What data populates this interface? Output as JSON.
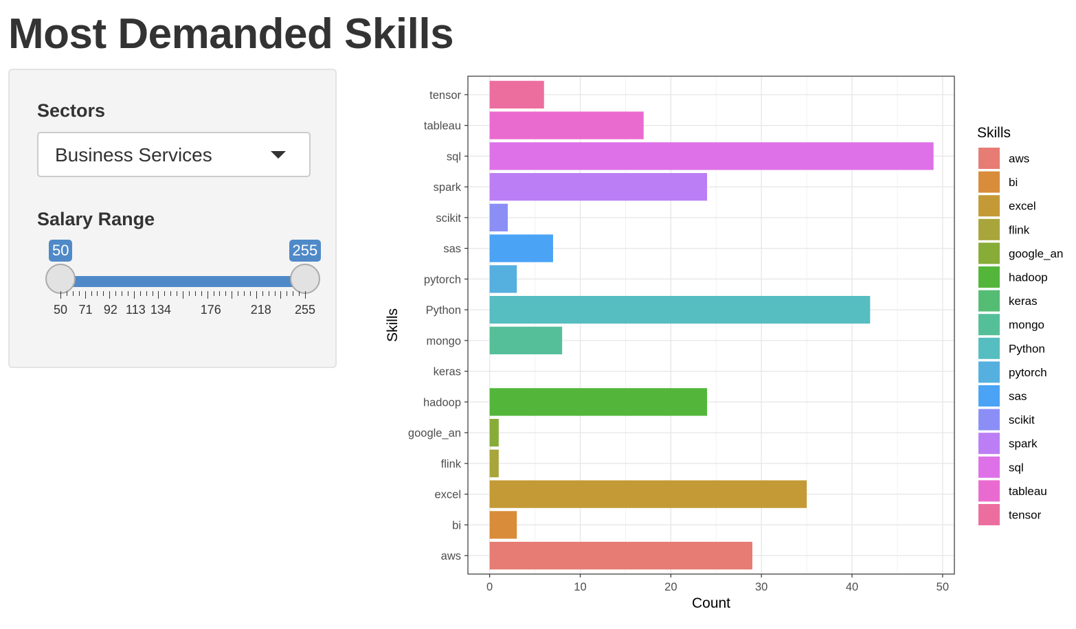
{
  "page": {
    "title": "Most Demanded Skills"
  },
  "sidebar": {
    "sectors_label": "Sectors",
    "sector_selected": "Business Services",
    "salary_label": "Salary Range",
    "salary_min": 50,
    "salary_max": 255,
    "salary_low": 50,
    "salary_high": 255,
    "salary_low_label": "50",
    "salary_high_label": "255",
    "tick_labels": [
      50,
      71,
      92,
      113,
      134,
      176,
      218,
      255
    ],
    "accent_color": "#4f89c8"
  },
  "chart_data": {
    "type": "bar",
    "orientation": "horizontal",
    "categories": [
      "aws",
      "bi",
      "excel",
      "flink",
      "google_an",
      "hadoop",
      "keras",
      "mongo",
      "Python",
      "pytorch",
      "sas",
      "scikit",
      "spark",
      "sql",
      "tableau",
      "tensor"
    ],
    "values": [
      29,
      3,
      35,
      1,
      1,
      24,
      0,
      8,
      42,
      3,
      7,
      2,
      24,
      49,
      17,
      6
    ],
    "colors": [
      "#e67c73",
      "#d98c39",
      "#c39a36",
      "#a8a53a",
      "#88ac38",
      "#53b63a",
      "#55bc74",
      "#55bf9a",
      "#56bdc1",
      "#55b0e0",
      "#4ba3f5",
      "#8b8ff5",
      "#bc7ef4",
      "#de71e8",
      "#ea6bd0",
      "#ec6e9f"
    ],
    "xlabel": "Count",
    "ylabel": "Skills",
    "xlim": [
      -2.4,
      51.3
    ],
    "xticks": [
      0,
      10,
      20,
      30,
      40,
      50
    ],
    "legend_title": "Skills",
    "legend_position": "right",
    "grid": true
  }
}
